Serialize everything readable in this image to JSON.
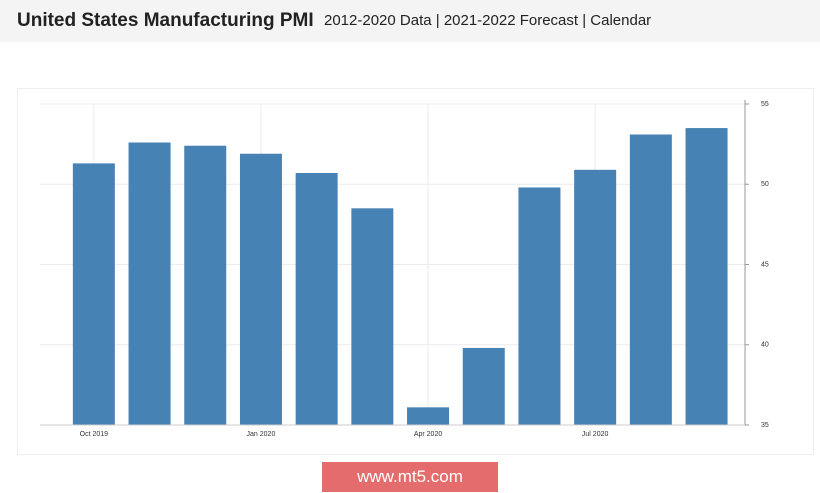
{
  "header": {
    "title": "United States Manufacturing PMI",
    "subtitle": "2012-2020 Data | 2021-2022 Forecast | Calendar"
  },
  "chart_data": {
    "type": "bar",
    "categories": [
      "Oct 2019",
      null,
      null,
      "Jan 2020",
      null,
      null,
      "Apr 2020",
      null,
      null,
      "Jul 2020",
      null,
      null
    ],
    "values": [
      51.3,
      52.6,
      52.4,
      51.9,
      50.7,
      48.5,
      36.1,
      39.8,
      49.8,
      50.9,
      53.1,
      53.5
    ],
    "color": "#4682b4",
    "ylim": [
      35,
      55
    ],
    "yticks": [
      35,
      40,
      45,
      50,
      55
    ],
    "grid": true
  },
  "watermark": "www.mt5.com"
}
